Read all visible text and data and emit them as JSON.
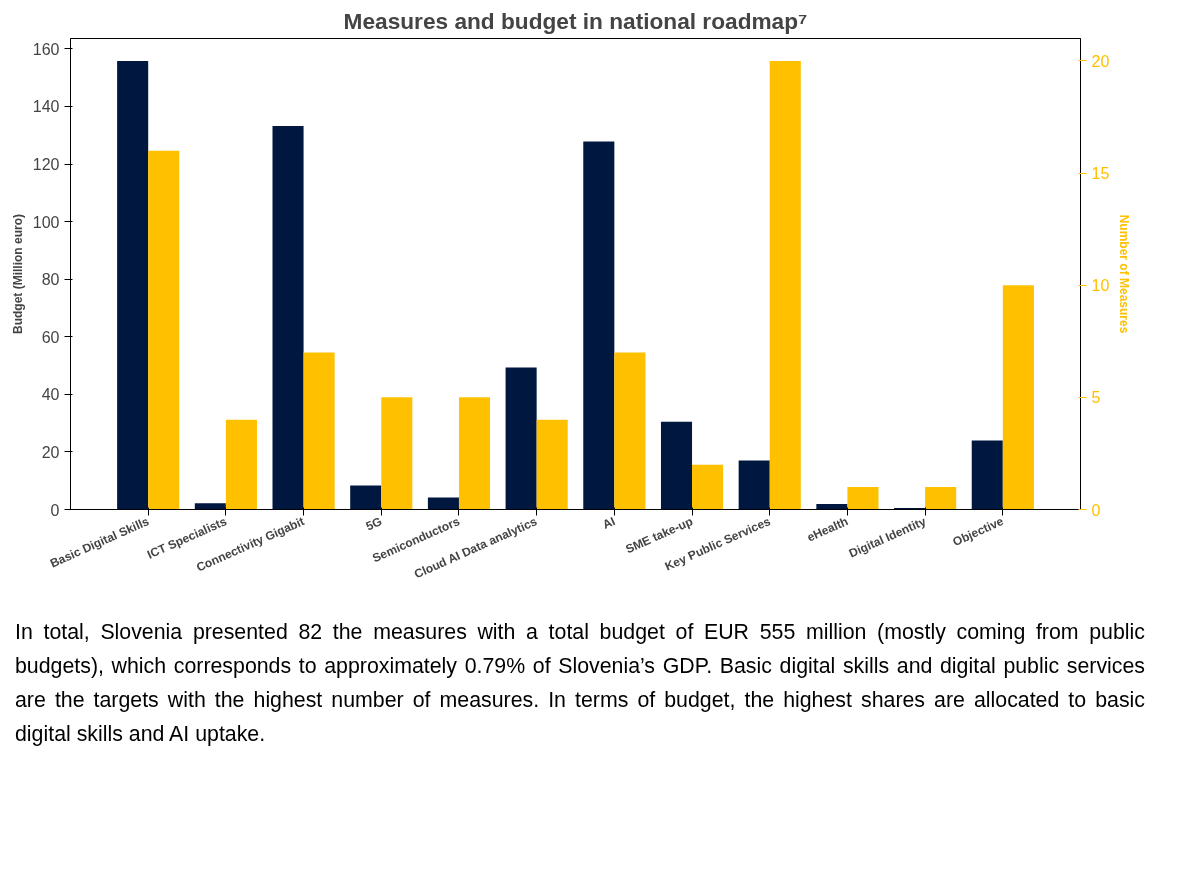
{
  "chart_data": {
    "type": "bar",
    "title": "Measures and budget in national roadmap⁷",
    "categories": [
      "Basic Digital Skills",
      "ICT Specialists",
      "Connectivity Gigabit",
      "5G",
      "Semiconductors",
      "Cloud AI Data analytics",
      "AI",
      "SME take-up",
      "Key Public Services",
      "eHealth",
      "Digital Identity",
      "Objective"
    ],
    "series": [
      {
        "name": null,
        "color": "#001740",
        "values": [
          155.8,
          2.2,
          133.2,
          8.3,
          4.2,
          49.3,
          127.8,
          30.5,
          17,
          1.9,
          0.5,
          24
        ]
      },
      {
        "name": null,
        "color": "#ffc000",
        "axis": "y2",
        "values": [
          16,
          4,
          7,
          5,
          5,
          4,
          7,
          2,
          20,
          1,
          1,
          10
        ]
      }
    ],
    "ylabel": "Budget (Million euro)",
    "y2label": "Number of Measures",
    "ylim": [
      0,
      163.6
    ],
    "yticks": [
      0,
      20,
      40,
      60,
      80,
      100,
      120,
      140,
      160
    ],
    "y2lim": [
      0,
      21
    ],
    "y2ticks": [
      0,
      5,
      10,
      15,
      20
    ],
    "grid": false,
    "annotations": [
      "In total, Slovenia presented 82 the measures with a total budget of EUR 555 million (mostly coming from public budgets), which corresponds to  approximately 0.79% of Slovenia’s GDP. Basic digital skills and digital public services are the targets with the highest number of measures. In terms of budget, the highest shares are allocated to basic digital skills and AI uptake."
    ]
  }
}
